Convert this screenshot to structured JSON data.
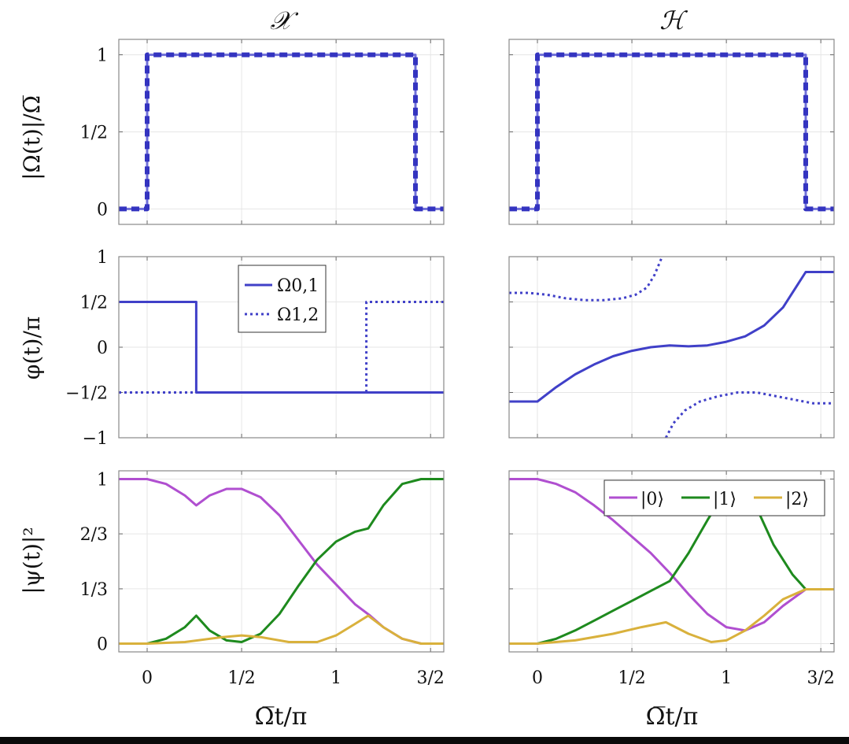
{
  "figure": {
    "column_titles": [
      "𝒳",
      "ℋ"
    ],
    "xlabel": "Ω̅t/π",
    "row_ylabels": [
      "|Ω(t)|/Ω̅",
      "φ(t)/π",
      "|ψ(t)|²"
    ]
  },
  "chart_data": [
    {
      "id": "X-amplitude",
      "type": "line",
      "column": "𝒳",
      "row": 0,
      "xlim": [
        -0.15,
        1.57
      ],
      "ylim": [
        -0.1,
        1.1
      ],
      "xticks": [
        0,
        0.5,
        1,
        1.5
      ],
      "xtick_labels": [
        "0",
        "1/2",
        "1",
        "3/2"
      ],
      "yticks": [
        0,
        0.5,
        1
      ],
      "ytick_labels": [
        "0",
        "1/2",
        "1"
      ],
      "grid": true,
      "series": [
        {
          "style": "solid",
          "color": "#6f6fd8",
          "x": [
            -0.15,
            0,
            0,
            1.42,
            1.42,
            1.57
          ],
          "y": [
            0,
            0,
            1,
            1,
            0,
            0
          ]
        },
        {
          "style": "dashed",
          "color": "#3434c0",
          "x": [
            -0.15,
            0,
            0,
            1.42,
            1.42,
            1.57
          ],
          "y": [
            0,
            0,
            1,
            1,
            0,
            0
          ]
        }
      ]
    },
    {
      "id": "H-amplitude",
      "type": "line",
      "column": "ℋ",
      "row": 0,
      "xlim": [
        -0.15,
        1.57
      ],
      "ylim": [
        -0.1,
        1.1
      ],
      "xticks": [
        0,
        0.5,
        1,
        1.5
      ],
      "xtick_labels": [
        "0",
        "1/2",
        "1",
        "3/2"
      ],
      "yticks": [
        0,
        0.5,
        1
      ],
      "ytick_labels": [
        "0",
        "1/2",
        "1"
      ],
      "grid": true,
      "series": [
        {
          "style": "solid",
          "color": "#6f6fd8",
          "x": [
            -0.15,
            0,
            0,
            1.42,
            1.42,
            1.57
          ],
          "y": [
            0,
            0,
            1,
            1,
            0,
            0
          ]
        },
        {
          "style": "dashed",
          "color": "#3434c0",
          "x": [
            -0.15,
            0,
            0,
            1.42,
            1.42,
            1.57
          ],
          "y": [
            0,
            0,
            1,
            1,
            0,
            0
          ]
        }
      ]
    },
    {
      "id": "X-phase",
      "type": "line",
      "column": "𝒳",
      "row": 1,
      "xlim": [
        -0.15,
        1.57
      ],
      "ylim": [
        -1,
        1
      ],
      "xticks": [
        0,
        0.5,
        1,
        1.5
      ],
      "yticks": [
        -1,
        -0.5,
        0,
        0.5,
        1
      ],
      "ytick_labels": [
        "−1",
        "−1/2",
        "0",
        "1/2",
        "1"
      ],
      "grid": true,
      "legend": {
        "position": "top-center",
        "entries": [
          "Ω0,1",
          "Ω1,2"
        ]
      },
      "series": [
        {
          "name": "Ω0,1",
          "style": "solid",
          "color": "#4040c8",
          "x": [
            -0.15,
            0.26,
            0.26,
            1.57
          ],
          "y": [
            0.5,
            0.5,
            -0.5,
            -0.5
          ]
        },
        {
          "name": "Ω1,2",
          "style": "dotted",
          "color": "#4040c8",
          "x": [
            -0.15,
            1.16,
            1.16,
            1.57
          ],
          "y": [
            -0.5,
            -0.5,
            0.5,
            0.5
          ]
        }
      ]
    },
    {
      "id": "H-phase",
      "type": "line",
      "column": "ℋ",
      "row": 1,
      "xlim": [
        -0.15,
        1.57
      ],
      "ylim": [
        -1,
        1
      ],
      "xticks": [
        0,
        0.5,
        1,
        1.5
      ],
      "yticks": [
        -1,
        -0.5,
        0,
        0.5,
        1
      ],
      "grid": true,
      "series": [
        {
          "style": "solid",
          "color": "#4040c8",
          "x": [
            -0.15,
            0,
            0.1,
            0.2,
            0.3,
            0.4,
            0.5,
            0.6,
            0.7,
            0.8,
            0.9,
            1.0,
            1.1,
            1.2,
            1.3,
            1.42,
            1.57
          ],
          "y": [
            -0.6,
            -0.6,
            -0.44,
            -0.3,
            -0.19,
            -0.1,
            -0.04,
            0.0,
            0.02,
            0.01,
            0.02,
            0.06,
            0.12,
            0.24,
            0.44,
            0.83,
            0.83
          ]
        },
        {
          "style": "dotted",
          "color": "#4040c8",
          "x": [
            -0.15,
            -0.05,
            0.05,
            0.15,
            0.25,
            0.35,
            0.45,
            0.52,
            0.58,
            0.62,
            0.66
          ],
          "y": [
            0.6,
            0.6,
            0.58,
            0.54,
            0.52,
            0.52,
            0.54,
            0.58,
            0.66,
            0.8,
            1.0
          ]
        },
        {
          "style": "dotted",
          "color": "#4040c8",
          "x": [
            0.68,
            0.72,
            0.78,
            0.86,
            0.96,
            1.06,
            1.16,
            1.26,
            1.36,
            1.46,
            1.57
          ],
          "y": [
            -1.0,
            -0.84,
            -0.7,
            -0.6,
            -0.54,
            -0.5,
            -0.5,
            -0.54,
            -0.58,
            -0.62,
            -0.62
          ]
        }
      ]
    },
    {
      "id": "X-population",
      "type": "line",
      "column": "𝒳",
      "row": 2,
      "xlim": [
        -0.15,
        1.57
      ],
      "ylim": [
        -0.05,
        1.05
      ],
      "xticks": [
        0,
        0.5,
        1,
        1.5
      ],
      "xtick_labels": [
        "0",
        "1/2",
        "1",
        "3/2"
      ],
      "yticks": [
        0,
        0.333,
        0.667,
        1
      ],
      "ytick_labels": [
        "0",
        "1/3",
        "2/3",
        "1"
      ],
      "grid": true,
      "series": [
        {
          "name": "|0⟩",
          "color": "#b04fd0",
          "x": [
            -0.15,
            0,
            0.1,
            0.2,
            0.26,
            0.33,
            0.42,
            0.5,
            0.6,
            0.7,
            0.8,
            0.9,
            1.0,
            1.1,
            1.18,
            1.25,
            1.35,
            1.45,
            1.57
          ],
          "y": [
            1,
            1,
            0.97,
            0.9,
            0.84,
            0.9,
            0.94,
            0.94,
            0.89,
            0.78,
            0.63,
            0.48,
            0.36,
            0.24,
            0.17,
            0.1,
            0.03,
            0,
            0
          ]
        },
        {
          "name": "|1⟩",
          "color": "#1e8a1e",
          "x": [
            -0.15,
            0,
            0.1,
            0.2,
            0.26,
            0.33,
            0.42,
            0.5,
            0.6,
            0.7,
            0.8,
            0.9,
            1.0,
            1.1,
            1.17,
            1.25,
            1.35,
            1.45,
            1.57
          ],
          "y": [
            0,
            0,
            0.03,
            0.1,
            0.17,
            0.08,
            0.02,
            0.01,
            0.06,
            0.18,
            0.35,
            0.51,
            0.62,
            0.68,
            0.7,
            0.84,
            0.97,
            1,
            1
          ]
        },
        {
          "name": "|2⟩",
          "color": "#d9b13c",
          "x": [
            -0.15,
            0,
            0.2,
            0.4,
            0.5,
            0.6,
            0.75,
            0.9,
            1.0,
            1.1,
            1.17,
            1.25,
            1.35,
            1.45,
            1.57
          ],
          "y": [
            0,
            0,
            0.01,
            0.04,
            0.05,
            0.04,
            0.01,
            0.01,
            0.05,
            0.12,
            0.17,
            0.1,
            0.03,
            0,
            0
          ]
        }
      ]
    },
    {
      "id": "H-population",
      "type": "line",
      "column": "ℋ",
      "row": 2,
      "xlim": [
        -0.15,
        1.57
      ],
      "ylim": [
        -0.05,
        1.05
      ],
      "xticks": [
        0,
        0.5,
        1,
        1.5
      ],
      "xtick_labels": [
        "0",
        "1/2",
        "1",
        "3/2"
      ],
      "yticks": [
        0,
        0.333,
        0.667,
        1
      ],
      "grid": true,
      "legend": {
        "position": "top-right",
        "entries": [
          "|0⟩",
          "|1⟩",
          "|2⟩"
        ]
      },
      "series": [
        {
          "name": "|0⟩",
          "color": "#b04fd0",
          "x": [
            -0.15,
            0,
            0.1,
            0.2,
            0.3,
            0.4,
            0.5,
            0.6,
            0.7,
            0.8,
            0.9,
            1.0,
            1.1,
            1.2,
            1.3,
            1.42,
            1.57
          ],
          "y": [
            1,
            1,
            0.97,
            0.92,
            0.84,
            0.75,
            0.65,
            0.55,
            0.43,
            0.3,
            0.18,
            0.1,
            0.08,
            0.13,
            0.23,
            0.33,
            0.33
          ]
        },
        {
          "name": "|1⟩",
          "color": "#1e8a1e",
          "x": [
            -0.15,
            0,
            0.1,
            0.2,
            0.3,
            0.4,
            0.5,
            0.6,
            0.7,
            0.8,
            0.9,
            0.97,
            1.05,
            1.15,
            1.25,
            1.35,
            1.42,
            1.57
          ],
          "y": [
            0,
            0,
            0.03,
            0.08,
            0.14,
            0.2,
            0.26,
            0.32,
            0.38,
            0.55,
            0.75,
            0.88,
            0.95,
            0.85,
            0.6,
            0.42,
            0.33,
            0.33
          ]
        },
        {
          "name": "|2⟩",
          "color": "#d9b13c",
          "x": [
            -0.15,
            0,
            0.2,
            0.4,
            0.55,
            0.68,
            0.8,
            0.92,
            1.0,
            1.1,
            1.2,
            1.3,
            1.42,
            1.57
          ],
          "y": [
            0,
            0,
            0.02,
            0.06,
            0.1,
            0.13,
            0.06,
            0.01,
            0.02,
            0.08,
            0.17,
            0.27,
            0.33,
            0.33
          ]
        }
      ]
    }
  ]
}
